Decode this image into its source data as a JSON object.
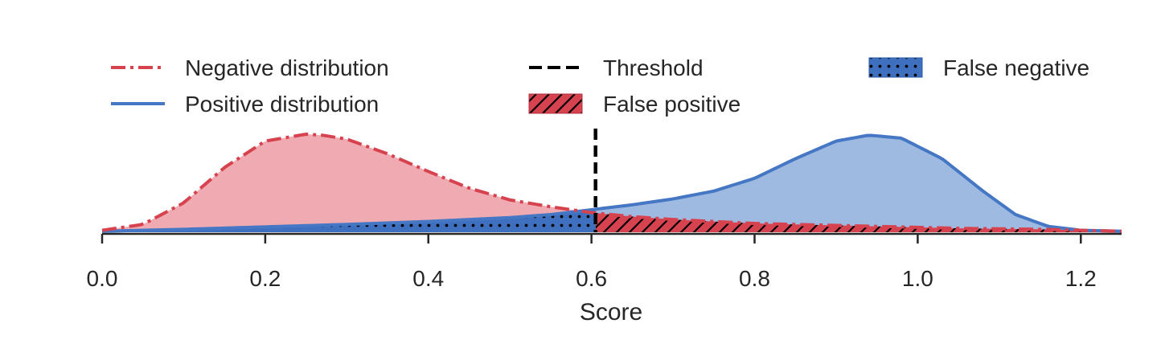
{
  "chart_data": {
    "type": "area",
    "xlabel": "Score",
    "ylabel": "",
    "xlim": [
      0.0,
      1.25
    ],
    "ylim": [
      0.0,
      1.0
    ],
    "xticks": [
      "0.0",
      "0.2",
      "0.4",
      "0.6",
      "0.8",
      "1.0",
      "1.2"
    ],
    "xtick_values": [
      0.0,
      0.2,
      0.4,
      0.6,
      0.8,
      1.0,
      1.2
    ],
    "threshold": 0.605,
    "legend": {
      "placement": "top",
      "entries": [
        {
          "key": "negative",
          "label": "Negative distribution",
          "style": "dash-dot line"
        },
        {
          "key": "threshold",
          "label": "Threshold",
          "style": "dashed line"
        },
        {
          "key": "false_negative",
          "label": "False negative",
          "style": "dotted fill"
        },
        {
          "key": "positive",
          "label": "Positive distribution",
          "style": "solid line"
        },
        {
          "key": "false_positive",
          "label": "False positive",
          "style": "hatched fill"
        }
      ]
    },
    "series": [
      {
        "name": "Negative distribution",
        "x": [
          0.0,
          0.05,
          0.1,
          0.15,
          0.2,
          0.25,
          0.27,
          0.3,
          0.35,
          0.4,
          0.45,
          0.5,
          0.55,
          0.6,
          0.65,
          0.7,
          0.75,
          0.8,
          0.85,
          0.9,
          0.95,
          1.0,
          1.05,
          1.1,
          1.15,
          1.2,
          1.25
        ],
        "y": [
          0.02,
          0.08,
          0.3,
          0.66,
          0.93,
          1.0,
          0.99,
          0.95,
          0.8,
          0.62,
          0.45,
          0.33,
          0.26,
          0.2,
          0.16,
          0.13,
          0.11,
          0.09,
          0.08,
          0.07,
          0.06,
          0.05,
          0.04,
          0.035,
          0.03,
          0.02,
          0.01
        ]
      },
      {
        "name": "Positive distribution",
        "x": [
          0.0,
          0.1,
          0.2,
          0.3,
          0.4,
          0.5,
          0.55,
          0.6,
          0.65,
          0.7,
          0.75,
          0.8,
          0.85,
          0.9,
          0.94,
          0.98,
          1.03,
          1.08,
          1.12,
          1.16,
          1.2,
          1.25
        ],
        "y": [
          0.01,
          0.03,
          0.055,
          0.08,
          0.11,
          0.15,
          0.18,
          0.23,
          0.28,
          0.34,
          0.42,
          0.55,
          0.75,
          0.93,
          0.99,
          0.96,
          0.75,
          0.42,
          0.18,
          0.06,
          0.02,
          0.01
        ]
      }
    ]
  },
  "colors": {
    "negative": "#d7424f",
    "negative_fill": "#eda2a8",
    "positive": "#4677c5",
    "positive_fill": "#9ab6de",
    "threshold": "#000000",
    "axis": "#262626"
  }
}
